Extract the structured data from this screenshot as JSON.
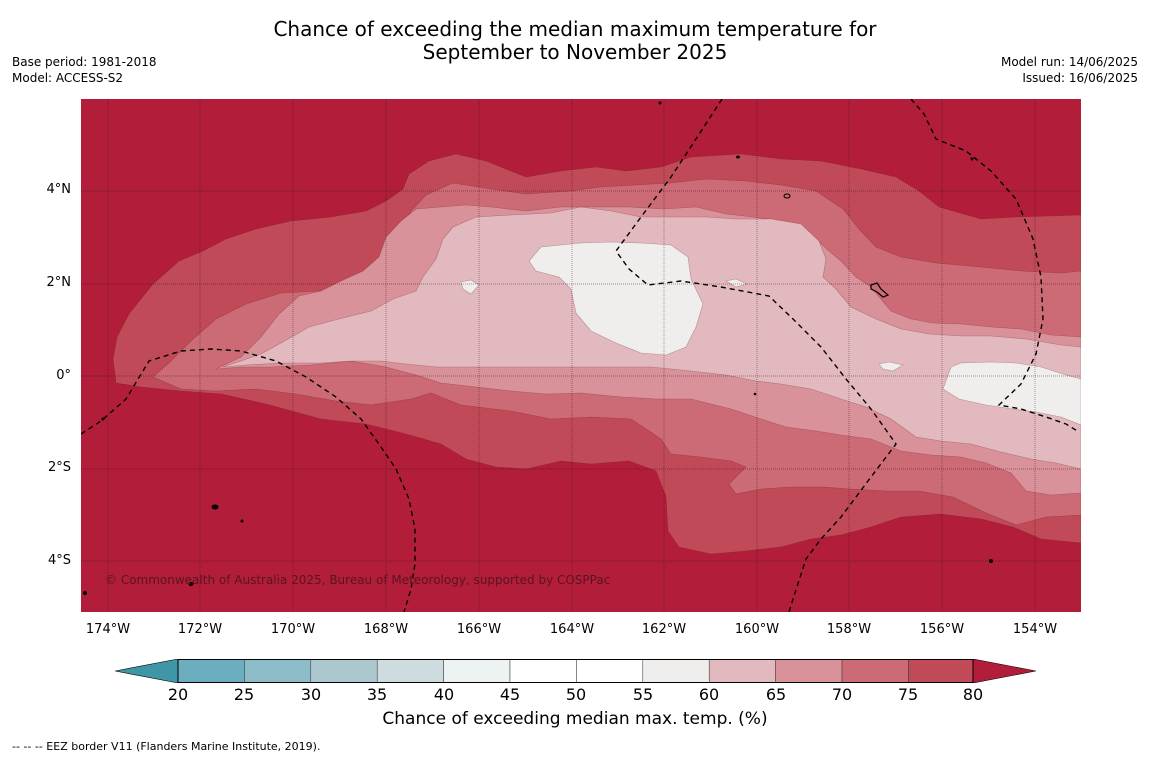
{
  "title": {
    "line1": "Chance of exceeding the median maximum temperature for",
    "line2": "September to November 2025"
  },
  "meta_left": {
    "base_period": "Base period: 1981-2018",
    "model": "Model: ACCESS-S2"
  },
  "meta_right": {
    "model_run": "Model run: 14/06/2025",
    "issued": "Issued: 16/06/2025"
  },
  "map": {
    "lat_labels": [
      "4°N",
      "2°N",
      "0°",
      "2°S",
      "4°S"
    ],
    "lon_labels": [
      "174°W",
      "172°W",
      "170°W",
      "168°W",
      "166°W",
      "164°W",
      "162°W",
      "160°W",
      "158°W",
      "156°W",
      "154°W"
    ],
    "copyright": "© Commonwealth of Australia 2025, Bureau of Meteorology, supported by COSPPac",
    "colors": {
      "c80": "#b21e3a",
      "c75": "#c04a57",
      "c70": "#cc6b76",
      "c65": "#d9919a",
      "c60": "#e2b9be",
      "c55": "#efeeec",
      "land": "#000000"
    }
  },
  "colorbar": {
    "ticks": [
      "20",
      "25",
      "30",
      "35",
      "40",
      "45",
      "50",
      "55",
      "60",
      "65",
      "70",
      "75",
      "80"
    ],
    "colors": [
      "#3f96a7",
      "#6aaebf",
      "#8bbcc8",
      "#abc8cf",
      "#cfdcdf",
      "#edf2f2",
      "#ffffff",
      "#ffffff",
      "#efeeec",
      "#e2b9be",
      "#d9919a",
      "#cc6b76",
      "#c04a57",
      "#b21e3a"
    ],
    "label": "Chance of exceeding median max. temp. (%)"
  },
  "footnote": "--  --  -- EEZ border V11 (Flanders Marine Institute, 2019)."
}
